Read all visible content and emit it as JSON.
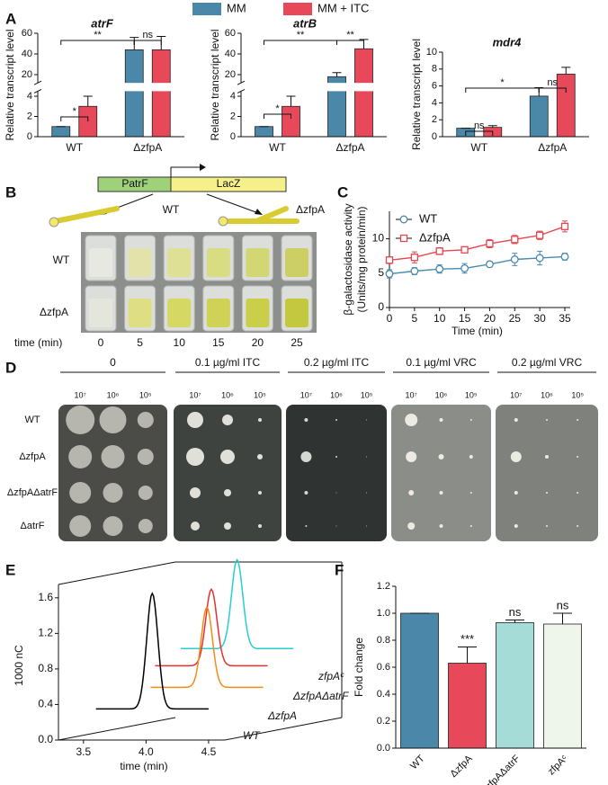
{
  "panel_labels": [
    "A",
    "B",
    "C",
    "D",
    "E",
    "F"
  ],
  "chart_data": [
    {
      "type": "bar",
      "title": "atrF",
      "ylabel": "Relative transcript level",
      "categories": [
        "WT",
        "ΔzfpA"
      ],
      "series": [
        {
          "name": "MM",
          "color": "#4a87a9",
          "values": [
            1,
            44
          ],
          "errors": [
            0,
            12
          ]
        },
        {
          "name": "MM + ITC",
          "color": "#e8495a",
          "values": [
            3,
            44
          ],
          "errors": [
            1,
            13
          ]
        }
      ],
      "ylim": [
        0,
        60
      ],
      "ybreak": [
        4.5,
        12
      ],
      "yticks": [
        0,
        2,
        4,
        20,
        40,
        60
      ],
      "annotations": [
        "*",
        "**",
        "ns"
      ]
    },
    {
      "type": "bar",
      "title": "atrB",
      "ylabel": "Relative transcript level",
      "categories": [
        "WT",
        "ΔzfpA"
      ],
      "series": [
        {
          "color": "#4a87a9",
          "values": [
            1,
            18
          ],
          "errors": [
            0,
            4
          ]
        },
        {
          "color": "#e8495a",
          "values": [
            3,
            45
          ],
          "errors": [
            1,
            9
          ]
        }
      ],
      "ylim": [
        0,
        60
      ],
      "ybreak": [
        4.5,
        12
      ],
      "yticks": [
        0,
        2,
        4,
        20,
        40,
        60
      ],
      "annotations": [
        "*",
        "**",
        "**"
      ]
    },
    {
      "type": "bar",
      "title": "mdr4",
      "ylabel": "Relative transcript level",
      "categories": [
        "WT",
        "ΔzfpA"
      ],
      "series": [
        {
          "color": "#4a87a9",
          "values": [
            1,
            4.8
          ],
          "errors": [
            0,
            1
          ]
        },
        {
          "color": "#e8495a",
          "values": [
            1.1,
            7.4
          ],
          "errors": [
            0.2,
            0.8
          ]
        }
      ],
      "ylim": [
        0,
        10
      ],
      "yticks": [
        0,
        2,
        4,
        6,
        8,
        10
      ],
      "annotations": [
        "ns",
        "*",
        "ns"
      ]
    },
    {
      "type": "line",
      "ylabel": [
        "β-galactosidase activity",
        "(Units/mg protein/min)"
      ],
      "xlabel": "Time (min)",
      "x": [
        0,
        5,
        10,
        15,
        20,
        25,
        30,
        35
      ],
      "series": [
        {
          "name": "WT",
          "color": "#4a8ab0",
          "marker": "circle",
          "values": [
            4.9,
            5.3,
            5.6,
            5.7,
            6.3,
            7.0,
            7.2,
            7.4
          ],
          "errors": [
            0.6,
            0.5,
            0.6,
            0.7,
            0.4,
            0.9,
            1.0,
            0.5
          ]
        },
        {
          "name": "ΔzfpA",
          "color": "#e5474f",
          "marker": "square",
          "values": [
            6.9,
            7.3,
            8.2,
            8.4,
            9.3,
            9.9,
            10.5,
            11.8
          ],
          "errors": [
            0.5,
            0.8,
            0.5,
            0.3,
            0.6,
            0.6,
            0.6,
            0.8
          ]
        }
      ],
      "xlim": [
        0,
        35
      ],
      "xticks": [
        0,
        5,
        10,
        15,
        20,
        25,
        30,
        35
      ],
      "ylim": [
        0,
        14
      ],
      "yticks": [
        0,
        5,
        10
      ]
    },
    {
      "type": "chromatogram",
      "ylabel": "1000 nC",
      "xlabel": "time (min)",
      "series": [
        {
          "name": "WT",
          "color": "#000000",
          "peak_time": 4.05,
          "peak_height": 1.65,
          "baseline": 0.35
        },
        {
          "name": "ΔzfpA",
          "color": "#f28c1a",
          "peak_time": 4.22,
          "peak_height": 1.25,
          "baseline": 0.35
        },
        {
          "name": "ΔzfpAΔatrF",
          "color": "#e8302f",
          "peak_time": 3.99,
          "peak_height": 1.21,
          "baseline": 0.35
        },
        {
          "name": "zfpAᶜ",
          "color": "#27cfcf",
          "peak_time": 3.93,
          "peak_height": 1.3,
          "baseline": 0.3
        }
      ],
      "xlim": [
        3.3,
        4.63
      ],
      "xticks": [
        3.5,
        {
          "value": 4,
          "label": "4.0"
        },
        4.5
      ],
      "ylim": [
        0,
        1.75
      ],
      "yticks": [
        {
          "value": 0,
          "label": "0.0"
        },
        0.4,
        0.8,
        1.2,
        1.6
      ]
    },
    {
      "type": "bar",
      "ylabel": "Fold change",
      "categories": [
        "WT",
        "ΔzfpA",
        "ΔzfpAΔatrF",
        "zfpAᶜ"
      ],
      "values": [
        1,
        0.63,
        0.93,
        0.92
      ],
      "errors": [
        0,
        0.12,
        0.02,
        0.08
      ],
      "colors": [
        "#4a87a9",
        "#e8495a",
        "#a6dcd8",
        "#eef6ec"
      ],
      "ylim": [
        0,
        1.2
      ],
      "yticks": [
        {
          "value": 0,
          "label": "0.0"
        },
        0.2,
        0.4,
        0.6,
        0.8,
        {
          "value": 1,
          "label": "1.0"
        },
        1.2
      ],
      "annotations": [
        "***",
        "ns",
        "ns"
      ]
    }
  ],
  "panel_b": {
    "promoter": "PatrF",
    "reporter": "LacZ",
    "strains": [
      "WT",
      "ΔzfpA"
    ],
    "rows": [
      "WT",
      "ΔzfpA"
    ],
    "time_label": "time (min)",
    "times": [
      0,
      5,
      10,
      15,
      20,
      25
    ]
  },
  "panel_d": {
    "columns": [
      "0",
      "0.1 µg/ml ITC",
      "0.2 µg/ml ITC",
      "0.1 µg/ml VRC",
      "0.2 µg/ml VRC"
    ],
    "dilutions": [
      "10⁷",
      "10⁶",
      "10⁵"
    ],
    "rows": [
      "WT",
      "ΔzfpA",
      "ΔzfpAΔatrF",
      "ΔatrF"
    ]
  }
}
